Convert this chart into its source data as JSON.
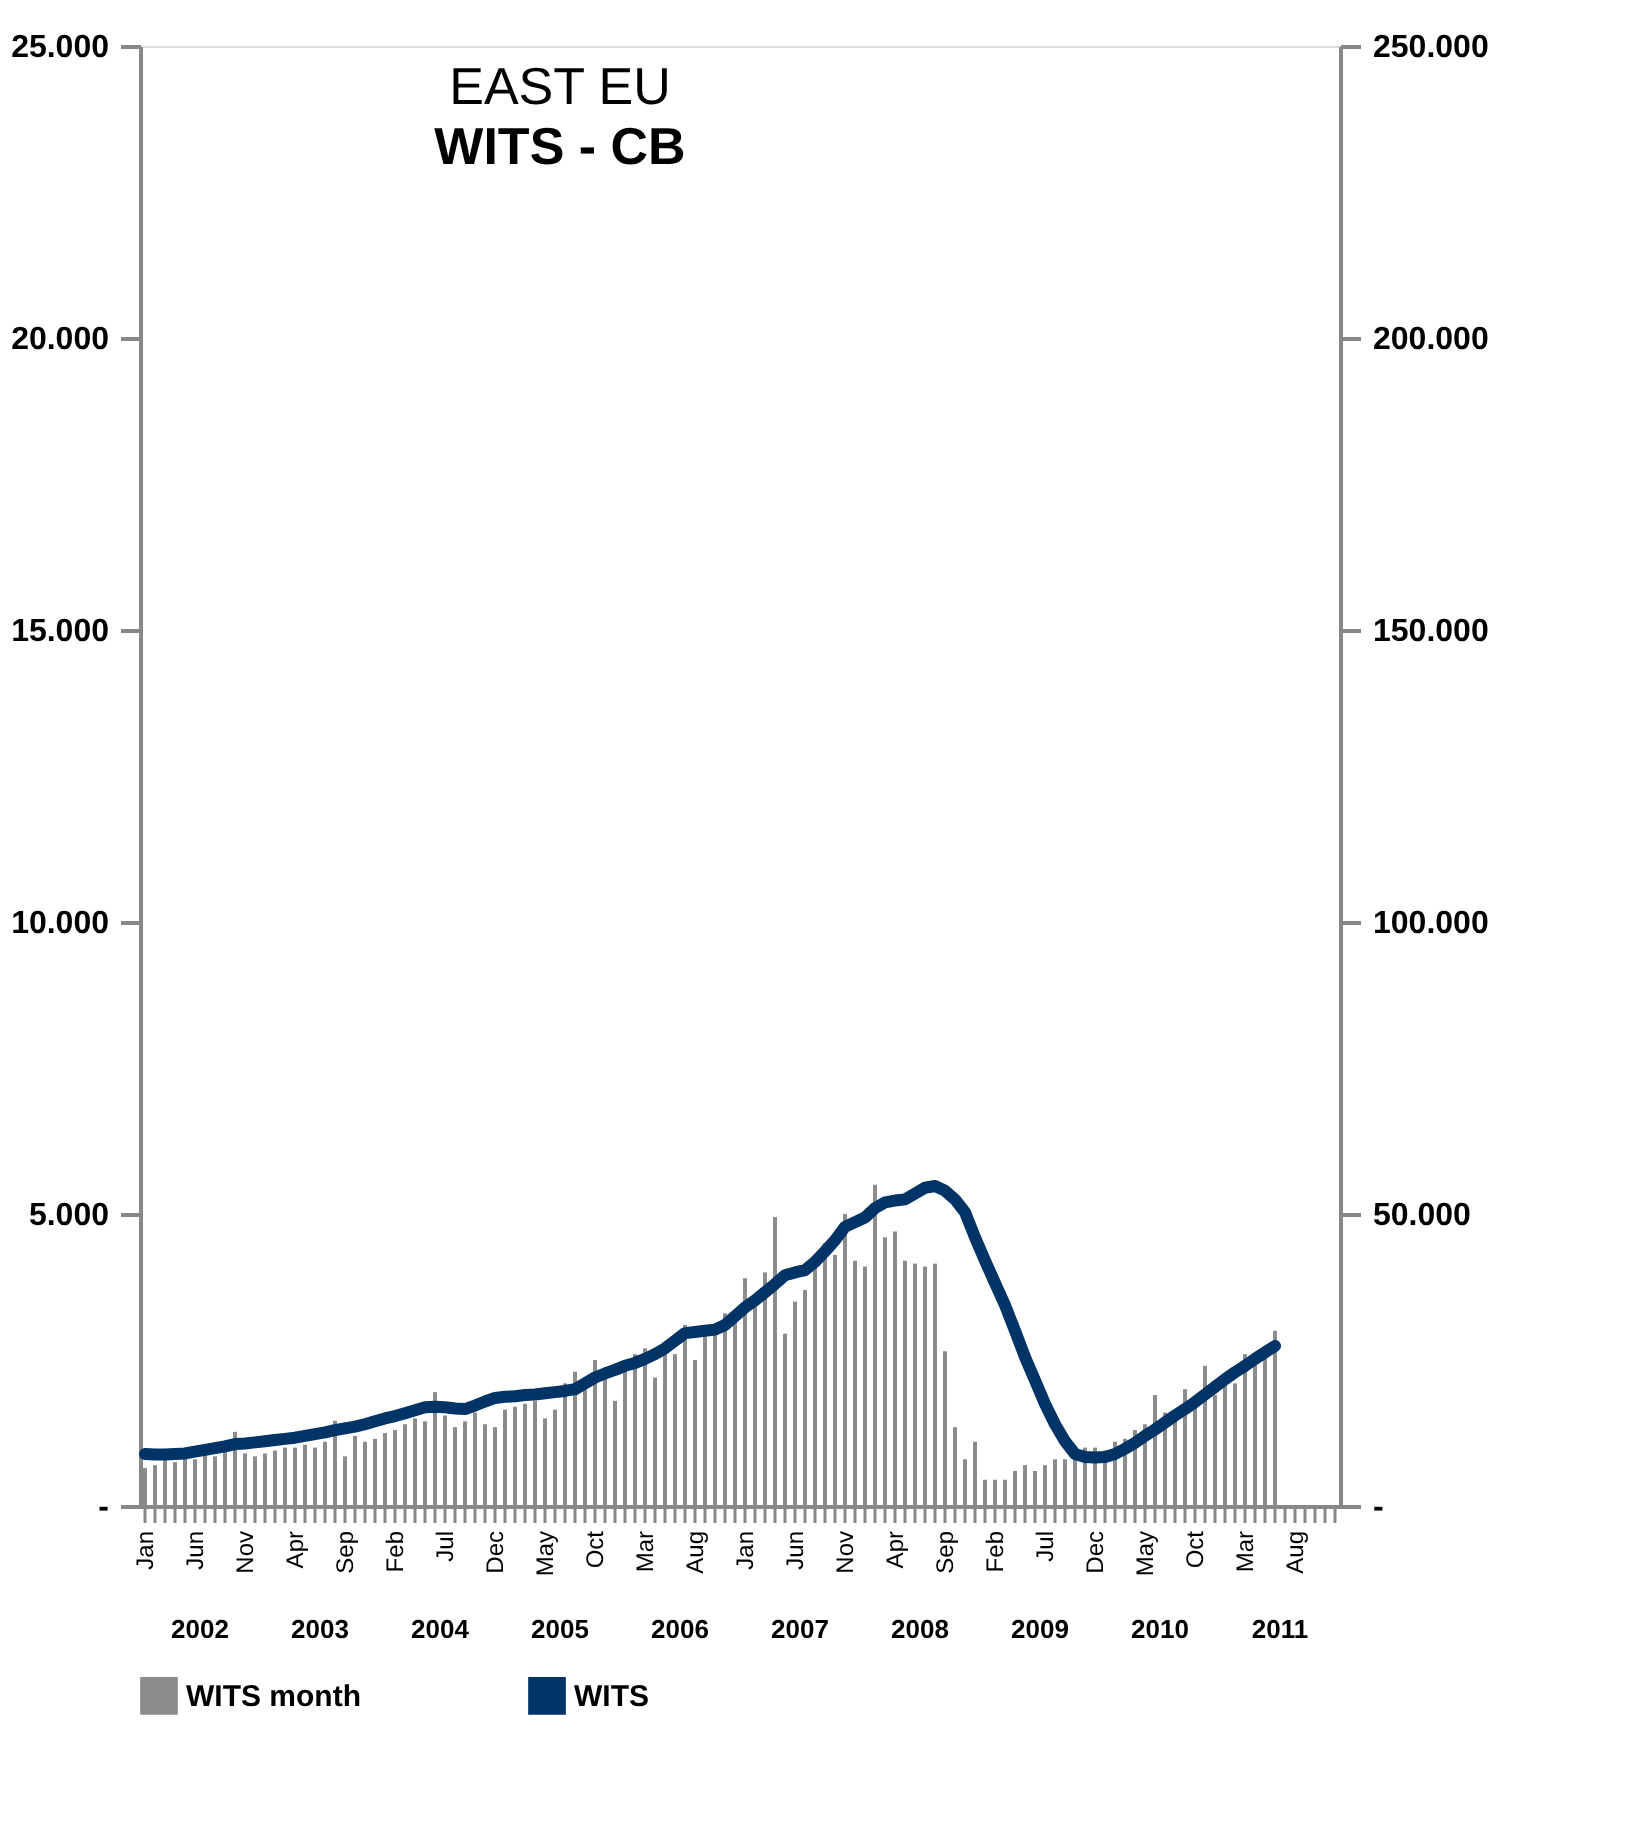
{
  "chart_data": {
    "type": "bar",
    "title": "EAST EU",
    "subtitle": "WITS - CB",
    "categories": [
      "Jan",
      null,
      null,
      null,
      null,
      "Jun",
      null,
      null,
      null,
      null,
      "Nov",
      null,
      null,
      null,
      null,
      "Apr",
      null,
      null,
      null,
      null,
      "Sep",
      null,
      null,
      null,
      null,
      "Feb",
      null,
      null,
      null,
      null,
      "Jul",
      null,
      null,
      null,
      null,
      "Dec",
      null,
      null,
      null,
      null,
      "May",
      null,
      null,
      null,
      null,
      "Oct",
      null,
      null,
      null,
      null,
      "Mar",
      null,
      null,
      null,
      null,
      "Aug",
      null,
      null,
      null,
      null,
      "Jan",
      null,
      null,
      null,
      null,
      "Jun",
      null,
      null,
      null,
      null,
      "Nov",
      null,
      null,
      null,
      null,
      "Apr",
      null,
      null,
      null,
      null,
      "Sep",
      null,
      null,
      null,
      null,
      "Feb",
      null,
      null,
      null,
      null,
      "Jul",
      null,
      null,
      null,
      null,
      "Dec",
      null,
      null,
      null,
      null,
      "May",
      null,
      null,
      null,
      null,
      "Oct",
      null,
      null,
      null,
      null,
      "Mar",
      null,
      null,
      null,
      null,
      "Aug",
      null,
      null,
      null,
      null
    ],
    "series": [
      {
        "name": "WITS month",
        "color": "#8c8c8c",
        "values": [
          650,
          700,
          800,
          750,
          850,
          800,
          900,
          850,
          950,
          1270,
          900,
          850,
          900,
          950,
          1000,
          1000,
          1050,
          1000,
          1100,
          1460,
          850,
          1200,
          1100,
          1150,
          1250,
          1300,
          1400,
          1500,
          1450,
          1950,
          1550,
          1350,
          1450,
          1600,
          1400,
          1350,
          1650,
          1700,
          1750,
          1800,
          1500,
          1650,
          2100,
          2300,
          2200,
          2500,
          2300,
          1800,
          2400,
          2600,
          2700,
          2200,
          2650,
          2600,
          3100,
          2500,
          2900,
          3000,
          3300,
          3200,
          3900,
          3500,
          4000,
          4950,
          2950,
          3500,
          3700,
          4100,
          4500,
          4300,
          5000,
          4200,
          4100,
          5500,
          4600,
          4700,
          4200,
          4150,
          4100,
          4150,
          2650,
          1350,
          800,
          1100,
          450,
          450,
          450,
          600,
          700,
          600,
          700,
          800,
          800,
          950,
          1000,
          1000,
          950,
          1100,
          1150,
          1300,
          1400,
          1900,
          1600,
          1500,
          2000,
          1750,
          2400,
          1900,
          2200,
          2100,
          2600,
          2500,
          2700,
          3000,
          null,
          null,
          null,
          null,
          null,
          null
        ]
      },
      {
        "name": "WITS",
        "type": "line",
        "axis": "y2",
        "color": "#003366",
        "values": [
          8900,
          8800,
          8800,
          8900,
          9000,
          9300,
          9600,
          9900,
          10200,
          10600,
          10700,
          10900,
          11100,
          11300,
          11500,
          11700,
          12000,
          12300,
          12600,
          13000,
          13300,
          13600,
          14000,
          14500,
          15000,
          15400,
          15900,
          16400,
          16900,
          17000,
          16900,
          16700,
          16600,
          17200,
          17900,
          18500,
          18700,
          18800,
          19000,
          19100,
          19300,
          19500,
          19700,
          20000,
          21000,
          22000,
          22700,
          23300,
          24000,
          24500,
          25200,
          26000,
          27000,
          28300,
          29600,
          29800,
          30000,
          30200,
          31000,
          32500,
          34000,
          35200,
          36600,
          38000,
          39500,
          40000,
          40400,
          41800,
          43600,
          45500,
          47800,
          48600,
          49400,
          51000,
          52000,
          52300,
          52500,
          53500,
          54500,
          54800,
          54000,
          52500,
          50300,
          46000,
          42000,
          38200,
          34400,
          30000,
          25500,
          21500,
          17500,
          14000,
          11100,
          8900,
          8400,
          8300,
          8400,
          8900,
          9800,
          10800,
          12000,
          13100,
          14300,
          15500,
          16600,
          17800,
          19100,
          20400,
          21700,
          22900,
          24000,
          25200,
          26300,
          27400,
          null,
          null,
          null,
          null,
          null,
          null
        ]
      }
    ],
    "ylim": [
      0,
      25000
    ],
    "yticks": [
      {
        "value": 0,
        "label": "-"
      },
      {
        "value": 5000,
        "label": "5.000"
      },
      {
        "value": 10000,
        "label": "10.000"
      },
      {
        "value": 15000,
        "label": "15.000"
      },
      {
        "value": 20000,
        "label": "20.000"
      },
      {
        "value": 25000,
        "label": "25.000"
      }
    ],
    "y2lim": [
      0,
      250000
    ],
    "y2ticks": [
      {
        "value": 0,
        "label": "-"
      },
      {
        "value": 50000,
        "label": "50.000"
      },
      {
        "value": 100000,
        "label": "100.000"
      },
      {
        "value": 150000,
        "label": "150.000"
      },
      {
        "value": 200000,
        "label": "200.000"
      },
      {
        "value": 250000,
        "label": "250.000"
      }
    ],
    "annotations": [
      "2002",
      "2003",
      "2004",
      "2005",
      "2006",
      "2007",
      "2008",
      "2009",
      "2010",
      "2011"
    ],
    "legend": "bottom",
    "grid": false
  }
}
